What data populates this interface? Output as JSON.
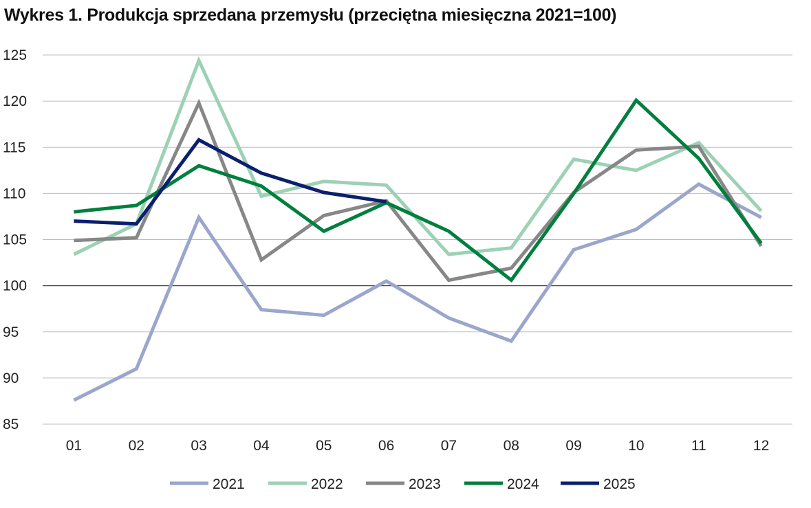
{
  "chart_data": {
    "type": "line",
    "title": "Wykres 1. Produkcja sprzedana przemysłu (przeciętna miesięczna 2021=100)",
    "xlabel": "",
    "ylabel": "",
    "categories": [
      "01",
      "02",
      "03",
      "04",
      "05",
      "06",
      "07",
      "08",
      "09",
      "10",
      "11",
      "12"
    ],
    "ylim": [
      85,
      125
    ],
    "yticks": [
      "85",
      "90",
      "95",
      "100",
      "105",
      "110",
      "115",
      "120",
      "125"
    ],
    "grid": "horizontal",
    "legend": "bottom",
    "series": [
      {
        "name": "2021",
        "color": "#9aa6cc",
        "values": [
          87.6,
          91.0,
          107.4,
          97.4,
          96.8,
          100.5,
          96.5,
          94.0,
          103.9,
          106.1,
          111.0,
          107.4
        ]
      },
      {
        "name": "2022",
        "color": "#9dd1b5",
        "values": [
          103.4,
          106.7,
          124.4,
          109.7,
          111.3,
          110.9,
          103.4,
          104.1,
          113.7,
          112.5,
          115.5,
          108.1
        ]
      },
      {
        "name": "2023",
        "color": "#878787",
        "values": [
          104.9,
          105.2,
          119.8,
          102.8,
          107.6,
          109.2,
          100.6,
          101.9,
          110.1,
          114.7,
          115.1,
          104.3
        ]
      },
      {
        "name": "2024",
        "color": "#007f3d",
        "values": [
          108.0,
          108.7,
          113.0,
          110.8,
          105.9,
          109.0,
          105.9,
          100.6,
          110.0,
          120.1,
          113.8,
          104.6
        ]
      },
      {
        "name": "2025",
        "color": "#0a1f6e",
        "values": [
          107.0,
          106.7,
          115.8,
          112.2,
          110.1,
          109.1,
          null,
          null,
          null,
          null,
          null,
          null
        ]
      }
    ]
  }
}
